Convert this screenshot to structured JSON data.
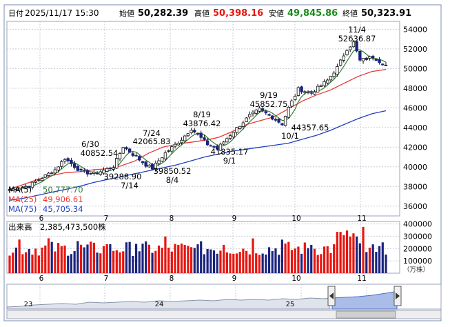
{
  "header": {
    "date_label": "日付",
    "date": "2025/11/17 15:30",
    "open_label": "始値",
    "open": "50,282.39",
    "high_label": "高値",
    "high": "50,398.16",
    "low_label": "安値",
    "low": "49,845.86",
    "close_label": "終値",
    "close": "50,323.91"
  },
  "legend": {
    "ma5": {
      "label": "MA(5)",
      "value": "50,777.70",
      "color": "#2e7d32"
    },
    "ma25": {
      "label": "MA(25)",
      "value": "49,906.61",
      "color": "#e53935"
    },
    "ma75": {
      "label": "MA(75)",
      "value": "45,705.34",
      "color": "#1e3fbf"
    }
  },
  "volume_header": {
    "label": "出来高",
    "value": "2,385,473,500株"
  },
  "volume_unit": "（万株）",
  "annotations": [
    {
      "id": "a1",
      "date": "6/30",
      "value": "40852.54"
    },
    {
      "id": "a2",
      "date": "7/24",
      "value": "42065.83"
    },
    {
      "id": "a3",
      "date": "7/14",
      "value": "39288.90"
    },
    {
      "id": "a4",
      "date": "8/4",
      "value": "39850.52"
    },
    {
      "id": "a5",
      "date": "8/19",
      "value": "43876.42"
    },
    {
      "id": "a6",
      "date": "9/1",
      "value": "41835.17"
    },
    {
      "id": "a7",
      "date": "9/19",
      "value": "45852.75"
    },
    {
      "id": "a8",
      "date": "10/1",
      "value": "44357.65"
    },
    {
      "id": "a9",
      "date": "11/4",
      "value": "52636.87"
    }
  ],
  "overview_labels": [
    "23",
    "24",
    "25"
  ],
  "chart_data": {
    "type": "candlestick",
    "x_month_labels": [
      "6",
      "7",
      "8",
      "9",
      "10",
      "11"
    ],
    "y_ticks": [
      36000,
      38000,
      40000,
      42000,
      44000,
      46000,
      48000,
      50000,
      52000,
      54000
    ],
    "ylim": [
      35000,
      54800
    ],
    "volume_ticks": [
      100000,
      200000,
      300000,
      400000
    ],
    "volume_ylim": [
      0,
      420000
    ],
    "ma75": [
      36600,
      36800,
      37100,
      37400,
      37700,
      38000,
      38400,
      38700,
      39000,
      39300,
      39600,
      39900,
      40200,
      40600,
      41000,
      41300,
      41600,
      41800,
      42000,
      42200,
      42400,
      42800,
      43200,
      43700,
      44300,
      44900,
      45400,
      45705
    ],
    "ma25": [
      37700,
      38200,
      38700,
      39100,
      39400,
      39500,
      39700,
      39800,
      40100,
      40600,
      41400,
      42000,
      42300,
      42500,
      42700,
      43000,
      43600,
      44300,
      44700,
      45100,
      45900,
      46700,
      47300,
      47800,
      48500,
      49200,
      49700,
      49907
    ]
  }
}
